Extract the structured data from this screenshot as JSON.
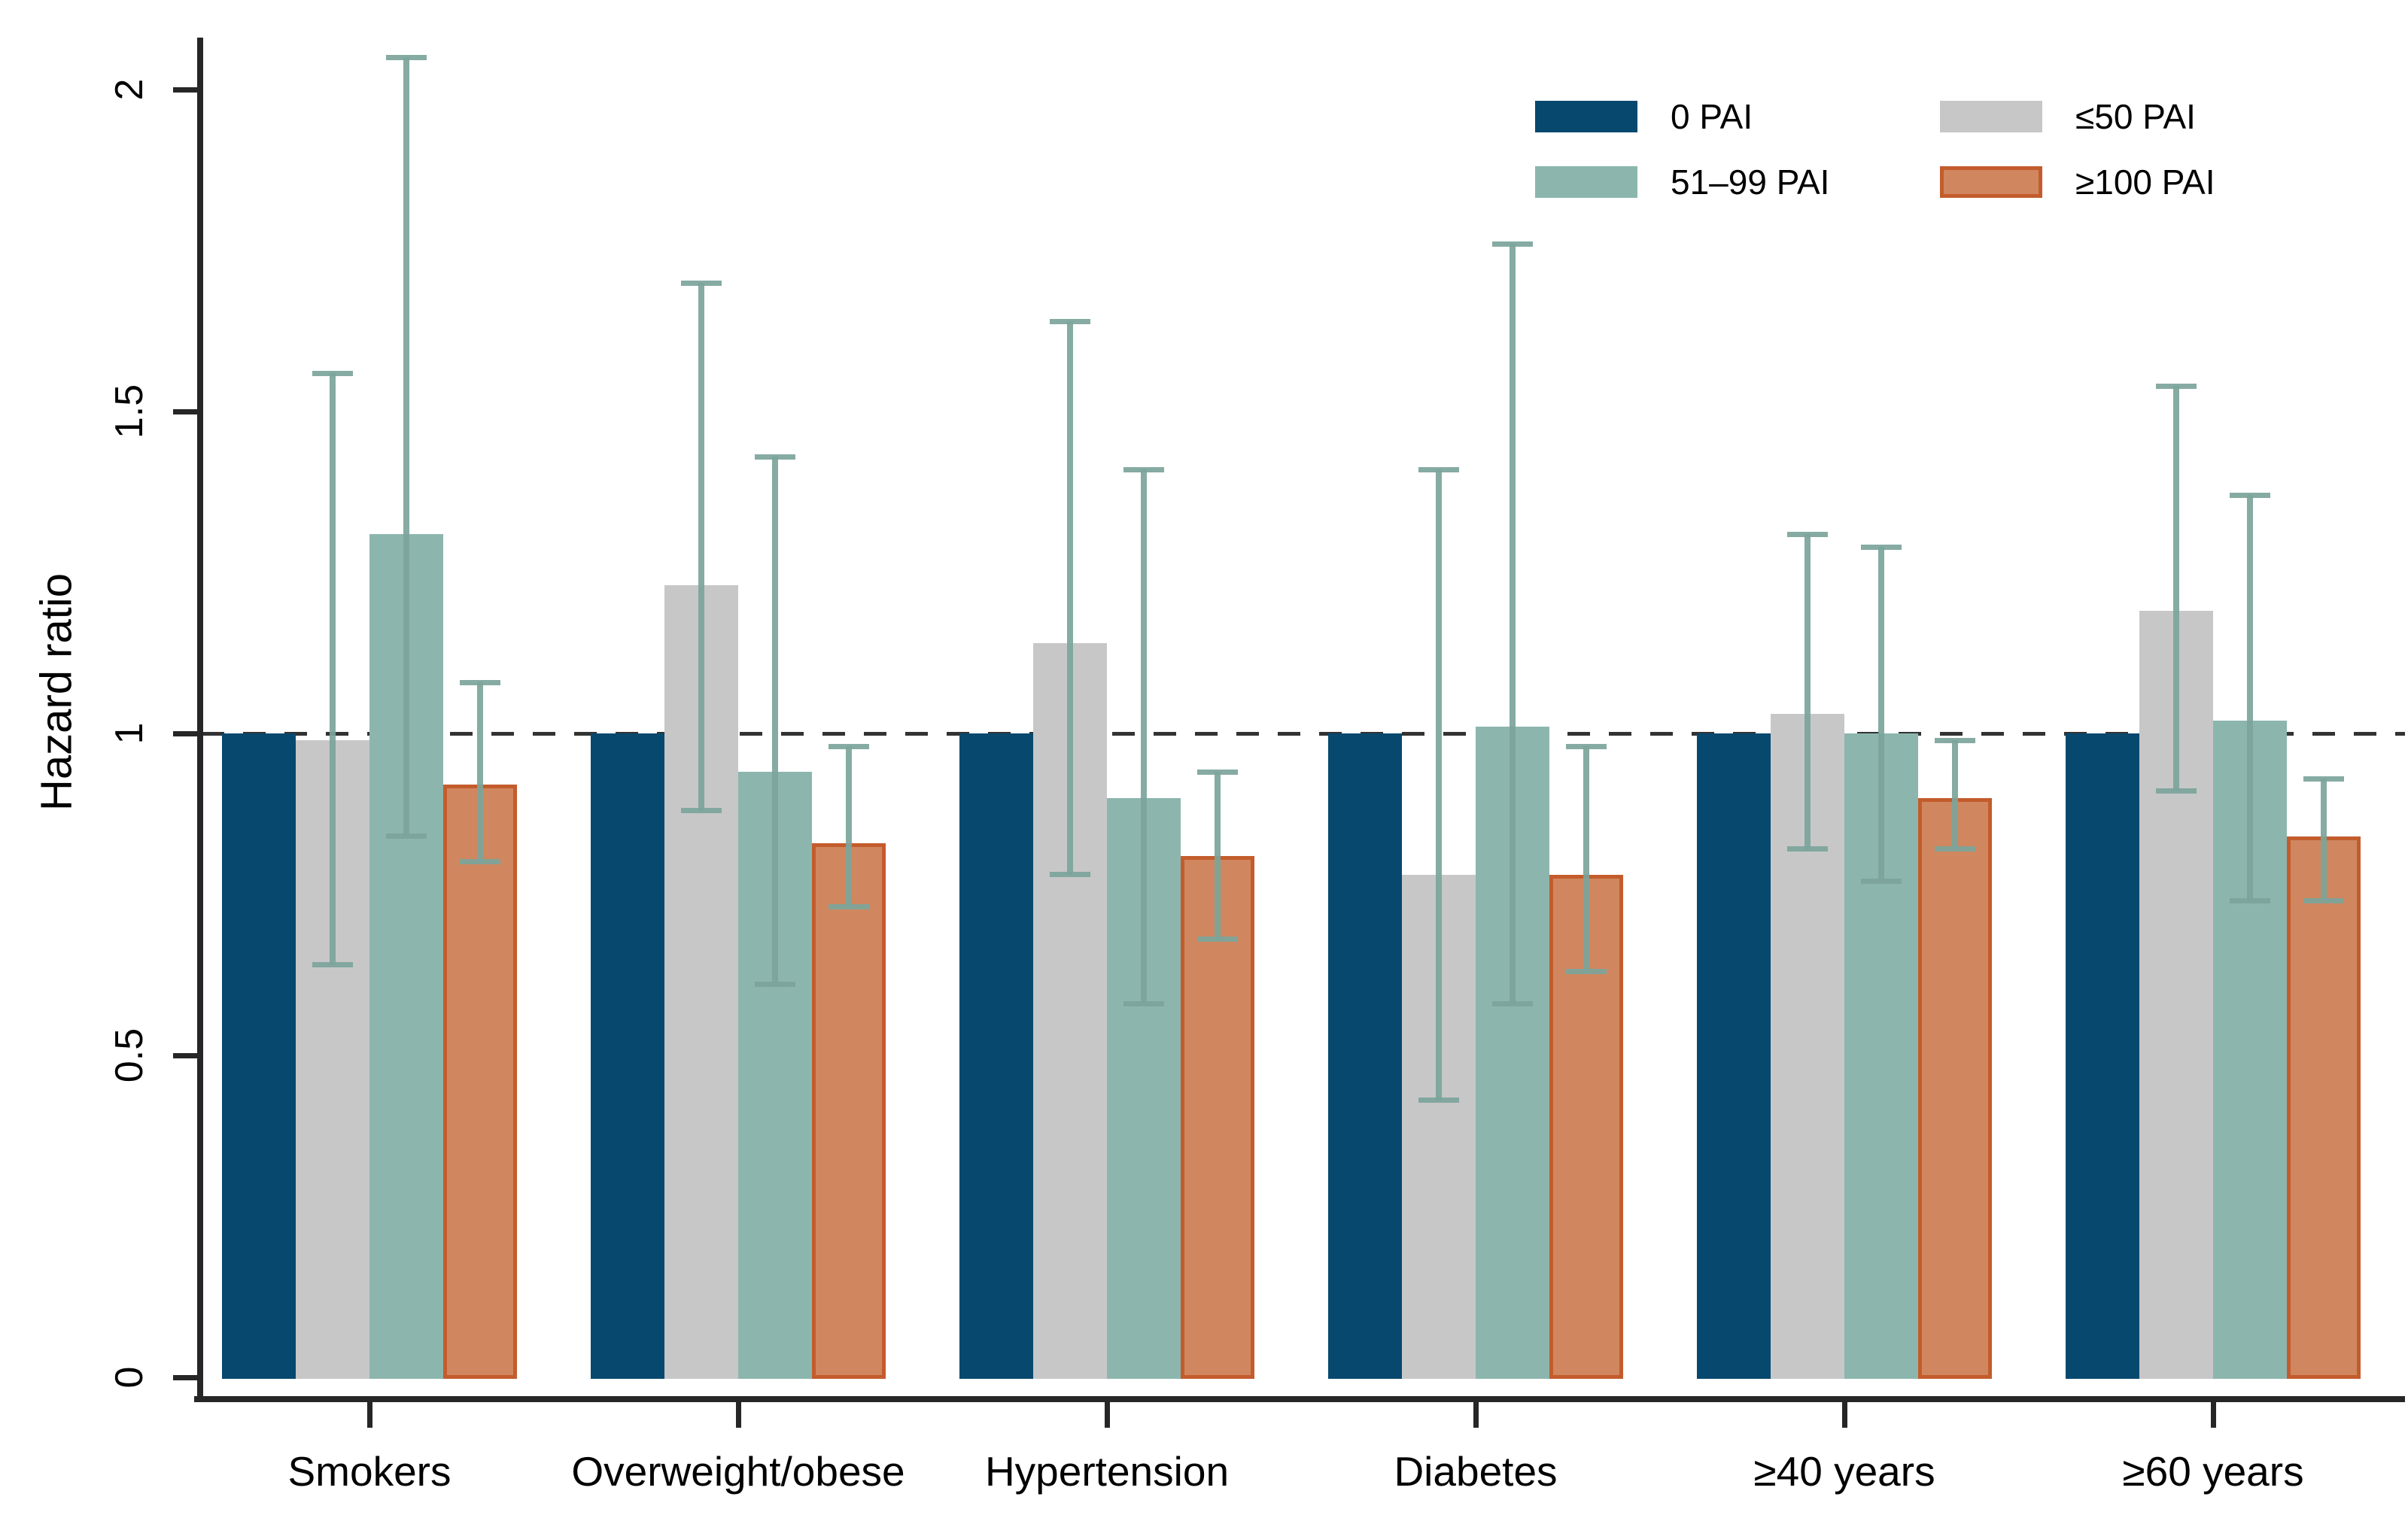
{
  "chart_data": {
    "type": "bar",
    "title": "",
    "ylabel": "Hazard ratio",
    "xlabel": "",
    "ylim": [
      0,
      2.08
    ],
    "yticks": [
      0,
      0.5,
      1,
      1.5,
      2
    ],
    "ytick_labels": [
      "0",
      "0.5",
      "1",
      "1.5",
      "2"
    ],
    "reference_line": 1.0,
    "grid": false,
    "legend_position": "top-right",
    "categories": [
      "Smokers",
      "Overweight/obese",
      "Hypertension",
      "Diabetes",
      "≥40 years",
      "≥60 years"
    ],
    "series": [
      {
        "name": "0 PAI",
        "color": "#07486f",
        "border": null,
        "values": [
          1.0,
          1.0,
          1.0,
          1.0,
          1.0,
          1.0
        ],
        "ci_low": [
          null,
          null,
          null,
          null,
          null,
          null
        ],
        "ci_high": [
          null,
          null,
          null,
          null,
          null,
          null
        ]
      },
      {
        "name": "≤50 PAI",
        "color": "#c7c7c7",
        "border": null,
        "values": [
          0.99,
          1.23,
          1.14,
          0.78,
          1.03,
          1.19
        ],
        "ci_low": [
          0.64,
          0.88,
          0.78,
          0.43,
          0.82,
          0.91
        ],
        "ci_high": [
          1.56,
          1.7,
          1.64,
          1.41,
          1.31,
          1.54
        ]
      },
      {
        "name": "51–99 PAI",
        "color": "#8cb6ad",
        "border": null,
        "values": [
          1.31,
          0.94,
          0.9,
          1.01,
          1.0,
          1.02
        ],
        "ci_low": [
          0.84,
          0.61,
          0.58,
          0.58,
          0.77,
          0.74
        ],
        "ci_high": [
          2.05,
          1.43,
          1.41,
          1.76,
          1.29,
          1.37
        ]
      },
      {
        "name": "≥100 PAI",
        "color": "#d0875f",
        "border": "#c35c2c",
        "values": [
          0.92,
          0.83,
          0.81,
          0.78,
          0.9,
          0.84
        ],
        "ci_low": [
          0.8,
          0.73,
          0.68,
          0.63,
          0.82,
          0.74
        ],
        "ci_high": [
          1.08,
          0.98,
          0.94,
          0.98,
          0.99,
          0.93
        ]
      }
    ],
    "error_bar_color": "#7ca49b",
    "axis_color": "#262626",
    "reference_line_color": "#333333"
  }
}
